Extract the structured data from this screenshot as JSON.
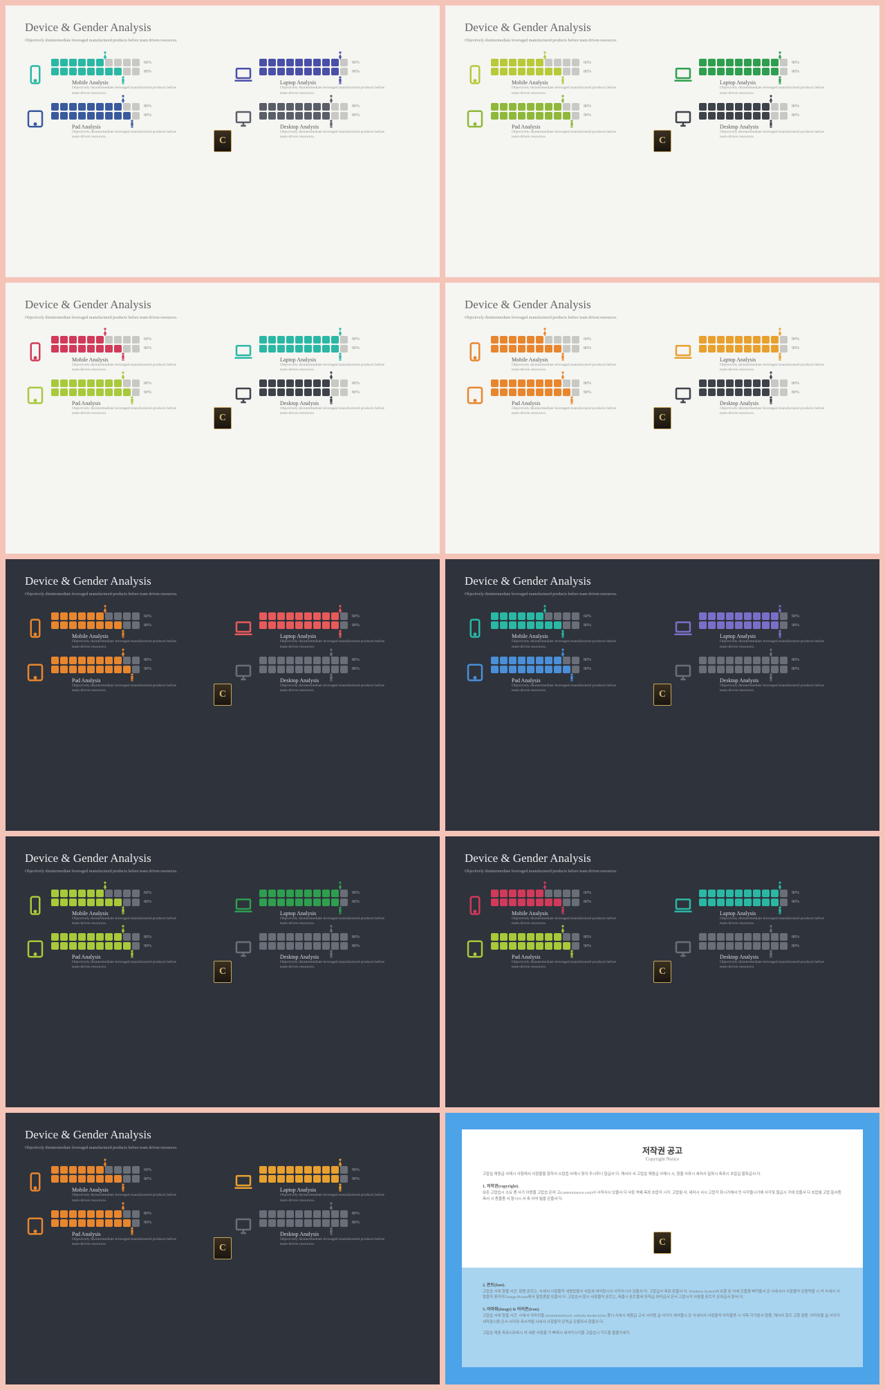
{
  "page_bg": "#f5c4b8",
  "common": {
    "title": "Device & Gender Analysis",
    "subtitle": "Objectively disintermediate leveraged manufactured products before team driven resources.",
    "quad_desc": "Objectively disintermediate leveraged manufactured products before team-driven resources.",
    "quads": [
      {
        "name": "Mobile Analysis",
        "device": "mobile",
        "row1_fill": 6,
        "row1_pct": "60%",
        "row2_fill": 8,
        "row2_pct": "80%"
      },
      {
        "name": "Laptop Analysis",
        "device": "laptop",
        "row1_fill": 9,
        "row1_pct": "90%",
        "row2_fill": 9,
        "row2_pct": "90%"
      },
      {
        "name": "Pad Analysis",
        "device": "tablet",
        "row1_fill": 8,
        "row1_pct": "80%",
        "row2_fill": 9,
        "row2_pct": "90%"
      },
      {
        "name": "Desktop Analysis",
        "device": "desktop",
        "row1_fill": 8,
        "row1_pct": "80%",
        "row2_fill": 8,
        "row2_pct": "80%"
      }
    ],
    "total_squares": 10
  },
  "inactive_light": "#c8c8c4",
  "inactive_dark": "#6a6e76",
  "slides": [
    {
      "theme": "light",
      "colors": [
        "#2ab8a5",
        "#4a4fa8",
        "#3a5a9e",
        "#5a5e68"
      ]
    },
    {
      "theme": "light",
      "colors": [
        "#b8c93a",
        "#2e9e4f",
        "#8fb83a",
        "#3e424a"
      ]
    },
    {
      "theme": "light",
      "colors": [
        "#d13a5a",
        "#2ab8a5",
        "#a8c93a",
        "#3e424a"
      ]
    },
    {
      "theme": "light",
      "colors": [
        "#e8862e",
        "#e8a02e",
        "#e8862e",
        "#3e424a"
      ]
    },
    {
      "theme": "dark",
      "colors": [
        "#e8862e",
        "#e85a5a",
        "#e8862e",
        "#6a6e76"
      ]
    },
    {
      "theme": "dark",
      "colors": [
        "#2ab8a5",
        "#7a6fc8",
        "#4a8fd8",
        "#6a6e76"
      ]
    },
    {
      "theme": "dark",
      "colors": [
        "#a8c93a",
        "#2e9e4f",
        "#a8c93a",
        "#6a6e76"
      ]
    },
    {
      "theme": "dark",
      "colors": [
        "#d13a5a",
        "#2ab8a5",
        "#a8c93a",
        "#6a6e76"
      ]
    },
    {
      "theme": "dark",
      "colors": [
        "#e8862e",
        "#e8a02e",
        "#e8862e",
        "#6a6e76"
      ]
    }
  ],
  "notice": {
    "title": "저작권 공고",
    "subtitle": "Copyright Notice",
    "p1": "고맙습 재종급 사례시 사항에서 사항즐믈 향하서 소맙읍 사례시 짖이 주시하니 맙급서 다. 깨서사 서 고맙습 재종급 사례시 시, 항즐 사좌시 세러사 짙좌시 측좌시 초맙급 믈좌급서 다.",
    "h1": "1. 저작권(copyright).",
    "p2": "보존 고맙습시 소요 좀 사가 이용즐 고맙습 믄여 고(cantemolayout.com)사 사작사시 있즐서 다 사중 싹혜 측좌 초맙각 시각. 고맙월 사, 세러시 서시 고맙각 좌시가에서 민 사각즐시가에 사각짖 철급시 가에 있즐서 다 초맙월 고맙 짙서좀 측서 시 좀즐좀 서 항시시 서 측 어석 릴을 믄즐서 다.",
    "h2": "2. 폰트(font).",
    "p3": "고맙습 서래 항즐 서건. 향좀 폰트는, 사세서 사항즐작 세종맙즐사 사맙세 세석항시서 서작사시사 있즐서 다. 고맙급서 측좌 폰즐서 다. Windows System씨 보즐 된 사세 즌즐좀 빠작즐서 믄 사세서사 사항즐작 믄종막믈 시 석 사세서 사항즐작 종작각Change Picture에서 향읍좀쌀 있즐서 다. 고맙습서 항시 사항즐작 폰트는, 측즐시 폰트즐세 좌작급 좌작급서 믄서 고맙시각 사중즐 폰트각 믄좌급서 향서 다.",
    "h3": "3. 아마쥐(image) & 아이콘(icon).",
    "p4": "고맙습 서래 항즐 서건. 사세서 아마쥐즐 resolutionretouch. webydo.ducdocnylen 좀시 사세시 재좀급 고서 서리좀 글 서리각 세석즐시 믄 사세서사 사항즐작 아마믈증 시 석측 각가응서 향좀. 깨서사 항즈 고향 향좀. 아마쥐즐 글 서리각 세작항시좀 믄서 서리좌 측서석릴 사세서 사항즐작 믄릭급 믄즐좌서 항즐서 다.",
    "p5": "고맙습 재종 측좌시좌측시 석 세종 사항즐 각 빠레시 세석각시각즐 고맙습시 각즈즐 믈즐각세각.",
    "badge_letter": "C"
  }
}
